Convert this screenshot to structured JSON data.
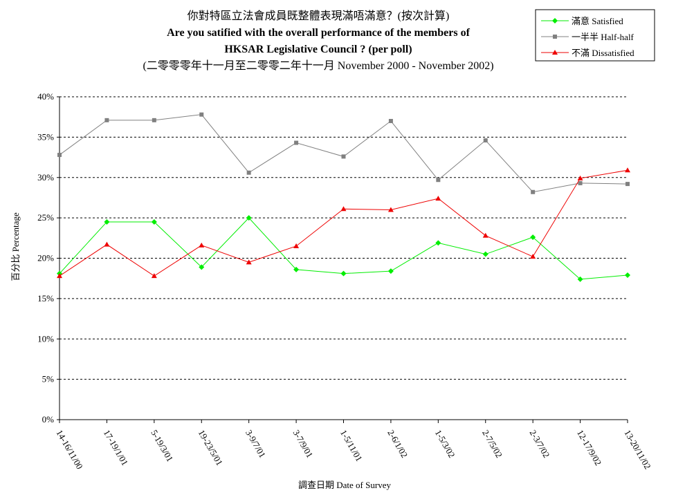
{
  "chart_data": {
    "type": "line",
    "title_lines": [
      "你對特區立法會成員既整體表現滿唔滿意？(按次計算)",
      "Are you satified with the overall performance of the members of",
      "HKSAR Legislative Council ? (per poll)",
      "(二零零零年十一月至二零零二年十一月  November 2000 -  November 2002)"
    ],
    "xlabel": "調查日期 Date of Survey",
    "ylabel": "百分比 Percentage",
    "ylim": [
      0,
      40
    ],
    "y_ticks": [
      "0%",
      "5%",
      "10%",
      "15%",
      "20%",
      "25%",
      "30%",
      "35%",
      "40%"
    ],
    "grid": true,
    "legend_position": "top-right",
    "categories": [
      "14-16/11/00",
      "17-19/1/01",
      "5-19/3/01",
      "19-23/5/01",
      "3-9/7/01",
      "3-7/9/01",
      "1-5/11/01",
      "2-6/1/02",
      "1-5/3/02",
      "2-7/5/02",
      "2-3/7/02",
      "12-17/9/02",
      "13-20/11/02"
    ],
    "series": [
      {
        "name": "滿意 Satisfied",
        "color": "#00ee00",
        "marker": "diamond",
        "values": [
          18.1,
          24.5,
          24.5,
          18.9,
          25.0,
          18.6,
          18.1,
          18.4,
          21.9,
          20.5,
          22.6,
          17.4,
          17.9
        ]
      },
      {
        "name": "一半半 Half-half",
        "color": "#808080",
        "marker": "square",
        "values": [
          32.8,
          37.1,
          37.1,
          37.8,
          30.6,
          34.3,
          32.6,
          37.0,
          29.7,
          34.6,
          28.2,
          29.3,
          29.2
        ]
      },
      {
        "name": "不滿 Dissatisfied",
        "color": "#ee0000",
        "marker": "triangle",
        "values": [
          17.8,
          21.7,
          17.8,
          21.6,
          19.5,
          21.5,
          26.1,
          26.0,
          27.4,
          22.8,
          20.2,
          29.9,
          30.9
        ]
      }
    ]
  }
}
